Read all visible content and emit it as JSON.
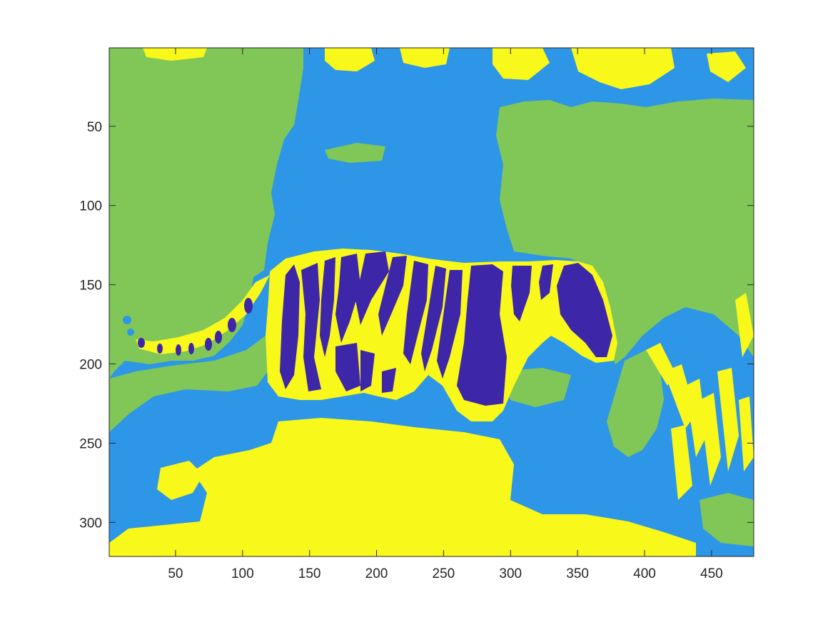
{
  "chart_data": {
    "type": "heatmap",
    "title": "",
    "xlabel": "",
    "ylabel": "",
    "xlim": [
      0.5,
      481.5
    ],
    "ylim": [
      0.5,
      321.5
    ],
    "y_reversed": true,
    "grid": false,
    "colorbar": false,
    "x_ticks": [
      50,
      100,
      150,
      200,
      250,
      300,
      350,
      400,
      450
    ],
    "y_ticks": [
      50,
      100,
      150,
      200,
      250,
      300
    ],
    "x_tick_labels": [
      "50",
      "100",
      "150",
      "200",
      "250",
      "300",
      "350",
      "400",
      "450"
    ],
    "y_tick_labels": [
      "50",
      "100",
      "150",
      "200",
      "250",
      "300"
    ],
    "image_size": {
      "width": 481,
      "height": 321
    },
    "clusters": 4,
    "colormap": [
      "#3e26a8",
      "#2e96e6",
      "#80c758",
      "#f9f81b"
    ],
    "colormap_meaning": [
      "tiger stripes",
      "water / shadow",
      "foliage background",
      "bright regions / tiger fur"
    ]
  }
}
